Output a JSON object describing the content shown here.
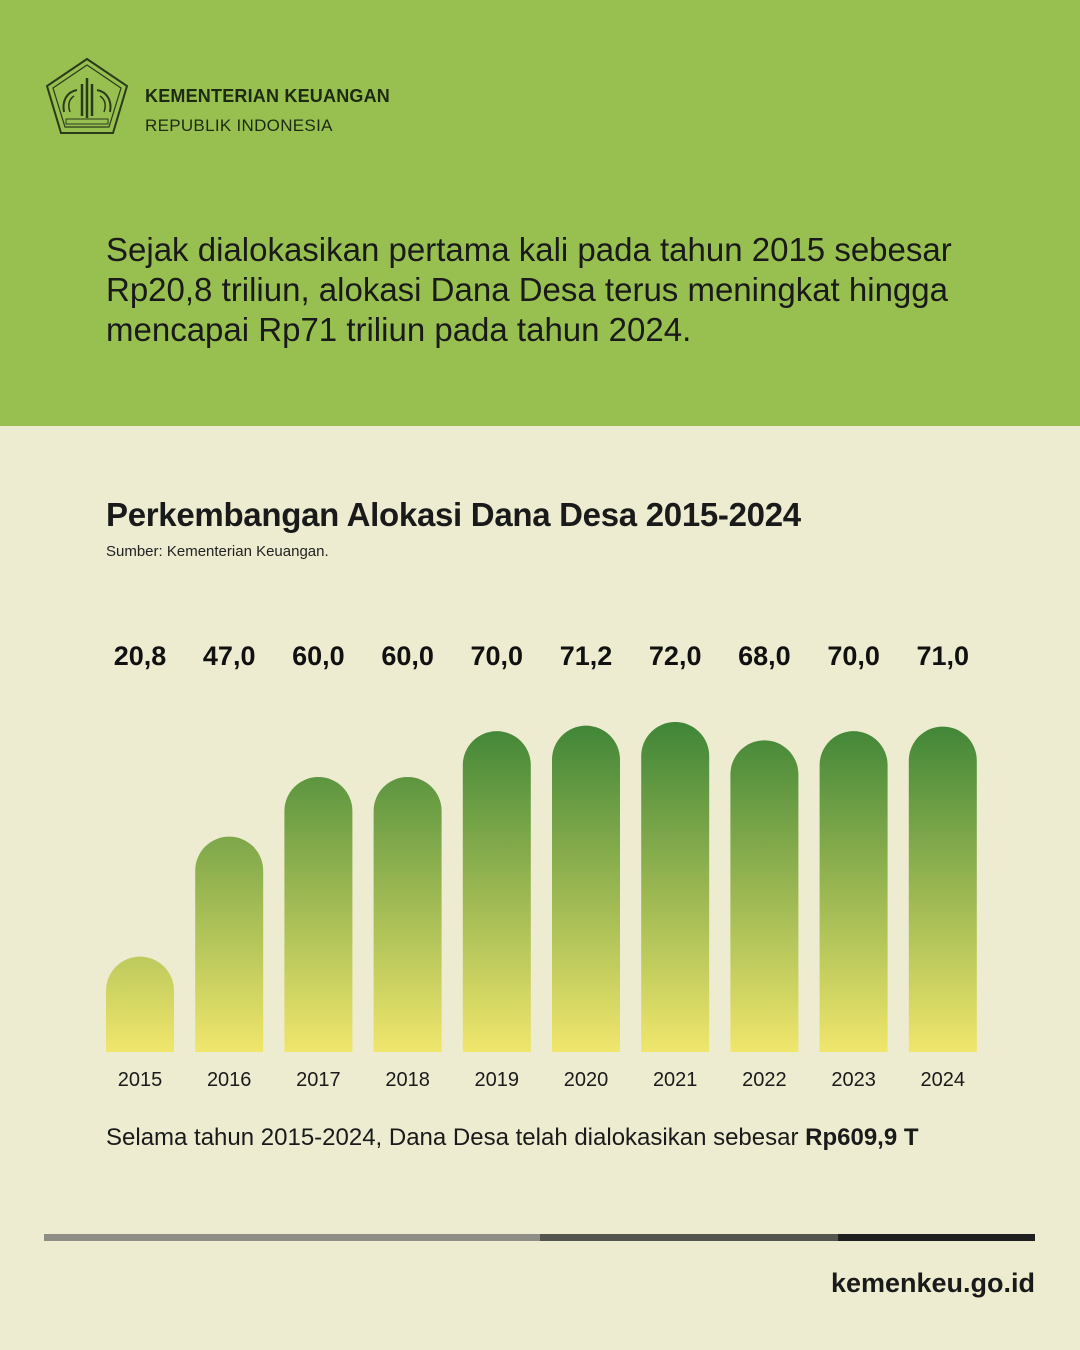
{
  "org": {
    "name": "KEMENTERIAN KEUANGAN",
    "subtitle": "REPUBLIK INDONESIA"
  },
  "intro_text": "Sejak dialokasikan pertama kali pada tahun 2015 sebesar Rp20,8 triliun, alokasi Dana Desa terus meningkat hingga mencapai Rp71 triliun pada tahun 2024.",
  "chart_data": {
    "type": "bar",
    "title": "Perkembangan Alokasi Dana Desa 2015-2024",
    "source": "Sumber: Kementerian Keuangan.",
    "categories": [
      "2015",
      "2016",
      "2017",
      "2018",
      "2019",
      "2020",
      "2021",
      "2022",
      "2023",
      "2024"
    ],
    "values": [
      20.8,
      47.0,
      60.0,
      60.0,
      70.0,
      71.2,
      72.0,
      68.0,
      70.0,
      71.0
    ],
    "value_labels": [
      "20,8",
      "47,0",
      "60,0",
      "60,0",
      "70,0",
      "71,2",
      "72,0",
      "68,0",
      "70,0",
      "71,0"
    ],
    "ylim": [
      0,
      72
    ],
    "grid": false,
    "colors": {
      "bar_top": "#3f8537",
      "bar_bottom": "#f0e66c"
    }
  },
  "summary": {
    "text": "Selama tahun 2015-2024, Dana Desa telah dialokasikan sebesar ",
    "total": "Rp609,9 T"
  },
  "footer": {
    "site": "kemenkeu.go.id"
  },
  "colors": {
    "header_bg": "#97c050",
    "page_bg": "#eeecd0"
  }
}
